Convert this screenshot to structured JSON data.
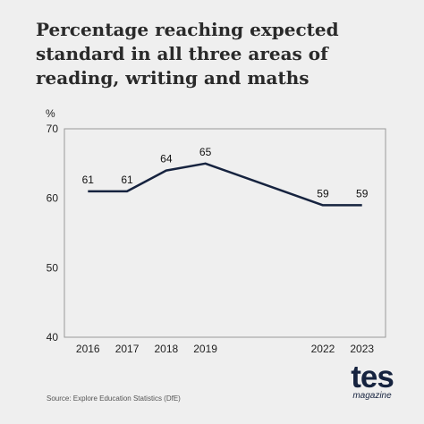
{
  "title_lines": [
    "Percentage reaching expected",
    "standard in all three areas of",
    "reading, writing and maths"
  ],
  "source": "Source: Explore Education Statistics (DfE)",
  "logo": {
    "main": "tes",
    "sub": "magazine"
  },
  "colors": {
    "background": "#efefef",
    "line": "#16233f",
    "text": "#2a2a2a"
  },
  "chart_data": {
    "type": "line",
    "title": "Percentage reaching expected standard in all three areas of reading, writing and maths",
    "ylabel": "%",
    "xlabel": "",
    "x": [
      2016,
      2017,
      2018,
      2019,
      2022,
      2023
    ],
    "xlim": [
      2015.4,
      2023.6
    ],
    "ylim": [
      40,
      70
    ],
    "yticks": [
      40,
      50,
      60,
      70
    ],
    "grid": false,
    "legend": "none",
    "series": [
      {
        "values": [
          61,
          61,
          64,
          65,
          59,
          59
        ],
        "labels": [
          "61",
          "61",
          "64",
          "65",
          "59",
          "59"
        ]
      }
    ]
  }
}
